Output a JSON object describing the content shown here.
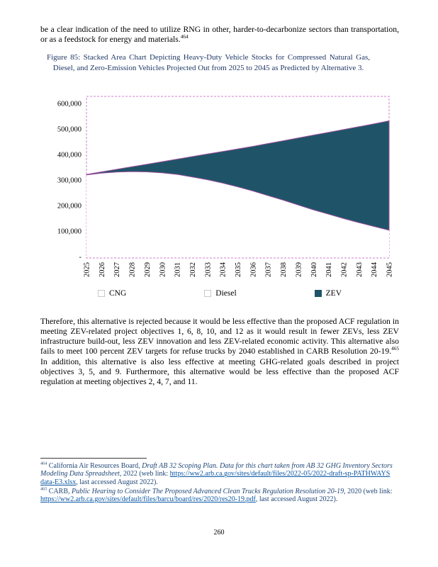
{
  "page": {
    "number": "260"
  },
  "paragraph_top": {
    "segments": [
      {
        "text": "be a clear indication of the need to utilize RNG in other, harder-to-decarbonize sectors than transportation, or as a feedstock for energy and materials."
      },
      {
        "text": "464",
        "class": "sup"
      }
    ]
  },
  "figure_caption": {
    "text": "Figure 85: Stacked Area Chart Depicting Heavy-Duty Vehicle Stocks for Compressed Natural Gas, Diesel, and Zero-Emission Vehicles Projected Out from 2025 to 2045 as Predicted by Alternative 3.",
    "color": "#1f3864"
  },
  "chart_data": {
    "type": "area",
    "stacked": true,
    "title": "Figure 85: Stacked Area Chart Depicting Heavy-Duty Vehicle Stocks for Compressed Natural Gas, Diesel, and Zero-Emission Vehicles Projected Out from 2025 to 2045 as Predicted by Alternative 3.",
    "xlabel": "",
    "ylabel": "",
    "grid": false,
    "legend_position": "bottom",
    "frame_color": "#cf7fcf",
    "ylim": [
      0,
      600000
    ],
    "yticks": [
      {
        "value": 0,
        "label": "-"
      },
      {
        "value": 100000,
        "label": "100,000"
      },
      {
        "value": 200000,
        "label": "200,000"
      },
      {
        "value": 300000,
        "label": "300,000"
      },
      {
        "value": 400000,
        "label": "400,000"
      },
      {
        "value": 500000,
        "label": "500,000"
      },
      {
        "value": 600000,
        "label": "600,000"
      }
    ],
    "x": [
      "2025",
      "2026",
      "2027",
      "2028",
      "2029",
      "2030",
      "2031",
      "2032",
      "2033",
      "2034",
      "2035",
      "2036",
      "2037",
      "2038",
      "2039",
      "2040",
      "2041",
      "2042",
      "2043",
      "2044",
      "2045"
    ],
    "series": [
      {
        "name": "CNG",
        "color": "#ffffff",
        "values": [
          5000,
          5000,
          5000,
          5000,
          5000,
          5000,
          5000,
          4000,
          4000,
          4000,
          4000,
          4000,
          3000,
          3000,
          3000,
          3000,
          3000,
          2000,
          2000,
          2000,
          2000
        ]
      },
      {
        "name": "Diesel",
        "color": "#ffffff",
        "values": [
          315000,
          322000,
          326000,
          328000,
          327000,
          323000,
          317000,
          308000,
          297000,
          284000,
          269000,
          253000,
          236000,
          218000,
          199000,
          180000,
          163000,
          147000,
          131000,
          116000,
          101000
        ]
      },
      {
        "name": "ZEV",
        "color": "#1f5468",
        "edge": "#9b4f9b",
        "values": [
          2000,
          5000,
          11000,
          19000,
          30000,
          44000,
          60000,
          80000,
          101000,
          124000,
          149000,
          175000,
          204000,
          233000,
          263000,
          293000,
          321000,
          349000,
          376000,
          402000,
          429000
        ]
      }
    ]
  },
  "paragraph_body": {
    "segments": [
      {
        "text": "Therefore, this alternative is rejected because it would be less effective than the proposed ACF regulation in meeting ZEV-related project objectives 1, 6, 8, 10, and 12 as it would result in fewer ZEVs, less ZEV infrastructure build-out, less ZEV innovation and less ZEV-related economic activity. This alternative also fails to meet 100 percent ZEV targets for refuse trucks by 2040 established in CARB Resolution 20-19."
      },
      {
        "text": "465",
        "class": "sup"
      },
      {
        "text": " In addition, this alternative is also less effective at meeting GHG-related goals described in project objectives 3, 5, and 9. Furthermore, this alternative would be less effective than the proposed ACF regulation at meeting objectives 2, 4, 7, and 11."
      }
    ]
  },
  "footnotes": [
    {
      "segments": [
        {
          "text": "464",
          "class": "sup"
        },
        {
          "text": " California Air Resources Board, "
        },
        {
          "text": "Draft AB 32 Scoping Plan. Data for this chart taken from AB 32 GHG Inventory Sectors Modeling Data Spreadsheet",
          "class": "italic"
        },
        {
          "text": ", 2022 (web link: "
        },
        {
          "text": "https://ww2.arb.ca.gov/sites/default/files/2022-05/2022-draft-sp-PATHWAYS data-E3.xlsx",
          "class": "link",
          "name": "footnote-464-link"
        },
        {
          "text": ", last accessed August 2022)."
        }
      ]
    },
    {
      "segments": [
        {
          "text": "465",
          "class": "sup"
        },
        {
          "text": " CARB, "
        },
        {
          "text": "Public Hearing to Consider The Proposed Advanced Clean Trucks Regulation Resolution 20-19",
          "class": "italic"
        },
        {
          "text": ", 2020 (web link: "
        },
        {
          "text": "https://ww2.arb.ca.gov/sites/default/files/barcu/board/res/2020/res20-19.pdf",
          "class": "link",
          "name": "footnote-465-link"
        },
        {
          "text": ", last accessed August 2022)."
        }
      ]
    }
  ]
}
